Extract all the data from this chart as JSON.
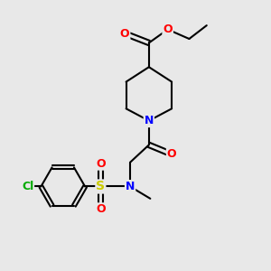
{
  "background_color": "#e8e8e8",
  "bond_color": "#000000",
  "atom_colors": {
    "O": "#ff0000",
    "N": "#0000ff",
    "S": "#cccc00",
    "Cl": "#00aa00",
    "C": "#000000"
  },
  "font_size_atoms": 9,
  "fig_size": [
    3.0,
    3.0
  ],
  "dpi": 100
}
